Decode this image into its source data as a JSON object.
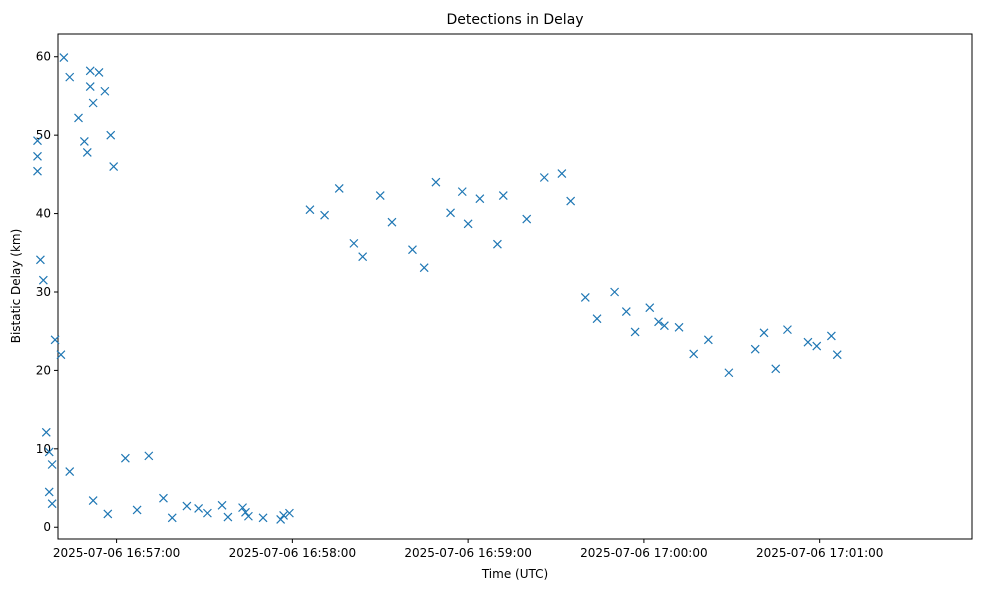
{
  "chart_data": {
    "type": "scatter",
    "title": "Detections in Delay",
    "xlabel": "Time (UTC)",
    "ylabel": "Bistatic Delay (km)",
    "x_ticks": [
      "2025-07-06 16:57:00",
      "2025-07-06 16:58:00",
      "2025-07-06 16:59:00",
      "2025-07-06 17:00:00",
      "2025-07-06 17:01:00"
    ],
    "y_ticks": [
      "0",
      "10",
      "20",
      "30",
      "40",
      "50",
      "60"
    ],
    "xlim": [
      "2025-07-06 16:56:40",
      "2025-07-06 17:01:52"
    ],
    "ylim": [
      -1.5,
      62.9
    ],
    "marker": "x",
    "color": "#1f77b4",
    "grid": false,
    "legend": "none",
    "series": [
      {
        "x_seconds_after_16_56": [
          33,
          33,
          33,
          34,
          35,
          36,
          37,
          38,
          39,
          41,
          42,
          44,
          47,
          49,
          50,
          51,
          51,
          52,
          54,
          56,
          58,
          59,
          37,
          38,
          44,
          52,
          57,
          63,
          67,
          71,
          76,
          79,
          84,
          88,
          91,
          96,
          98,
          103,
          104,
          105,
          110,
          116,
          117,
          119,
          126,
          131,
          136,
          141,
          144,
          150,
          154,
          161,
          165,
          169,
          174,
          178,
          180,
          184,
          190,
          192,
          200,
          206,
          212,
          215,
          220,
          224,
          230,
          234,
          237,
          242,
          245,
          247,
          252,
          257,
          262,
          269,
          278,
          281,
          285,
          289,
          296,
          299,
          304,
          306
        ],
        "y_values": [
          49.3,
          47.3,
          45.4,
          34.1,
          31.5,
          12.1,
          9.6,
          8.0,
          23.9,
          22.0,
          59.9,
          57.4,
          52.2,
          49.2,
          47.8,
          58.2,
          56.2,
          54.1,
          58.0,
          55.6,
          50.0,
          46.0,
          4.5,
          3.0,
          7.1,
          3.4,
          1.7,
          8.8,
          2.2,
          9.1,
          3.7,
          1.2,
          2.7,
          2.4,
          1.8,
          2.8,
          1.3,
          2.5,
          1.9,
          1.4,
          1.2,
          1.0,
          1.5,
          1.8,
          40.5,
          39.8,
          43.2,
          36.2,
          34.5,
          42.3,
          38.9,
          35.4,
          33.1,
          44.0,
          40.1,
          42.8,
          38.7,
          41.9,
          36.1,
          42.3,
          39.3,
          44.6,
          45.1,
          41.6,
          29.3,
          26.6,
          30.0,
          27.5,
          24.9,
          28.0,
          26.2,
          25.7,
          25.5,
          22.1,
          23.9,
          19.7,
          22.7,
          24.8,
          20.2,
          25.2,
          23.6,
          23.1,
          24.4,
          22.0
        ]
      }
    ]
  }
}
